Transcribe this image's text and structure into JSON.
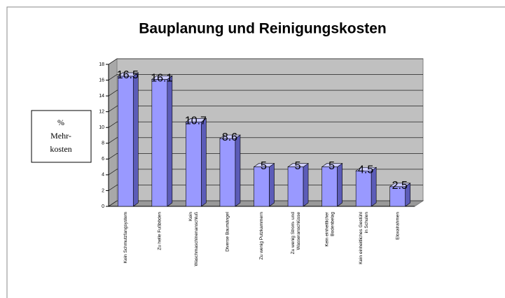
{
  "chart_data": {
    "type": "bar3d",
    "title": "Bauplanung und Reinigungskosten",
    "y_label": [
      "%",
      "Mehr-",
      "kosten"
    ],
    "categories": [
      [
        "Kein Schmutzfangsystem"
      ],
      [
        "Zu helle Fußböden"
      ],
      [
        "Kein",
        "Waschmaschinenanschluß"
      ],
      [
        "Diverse Baumängel"
      ],
      [
        "Zu wenig Putzkammern"
      ],
      [
        "Zu wenig Strom- und",
        "Wasseranschlüsse"
      ],
      [
        "Kein einheitlicher",
        "Bodenbelag"
      ],
      [
        "Kein einheitliches Gestühl",
        "in Schulen"
      ],
      [
        "Eloxalrahmen"
      ]
    ],
    "values": [
      16.5,
      16.1,
      10.7,
      8.6,
      5,
      5,
      5,
      4.5,
      2.5
    ],
    "color": "#9999ff",
    "ylim": [
      0,
      18
    ],
    "yticks": [
      0,
      2,
      4,
      6,
      8,
      10,
      12,
      14,
      16,
      18
    ],
    "grid": true
  }
}
